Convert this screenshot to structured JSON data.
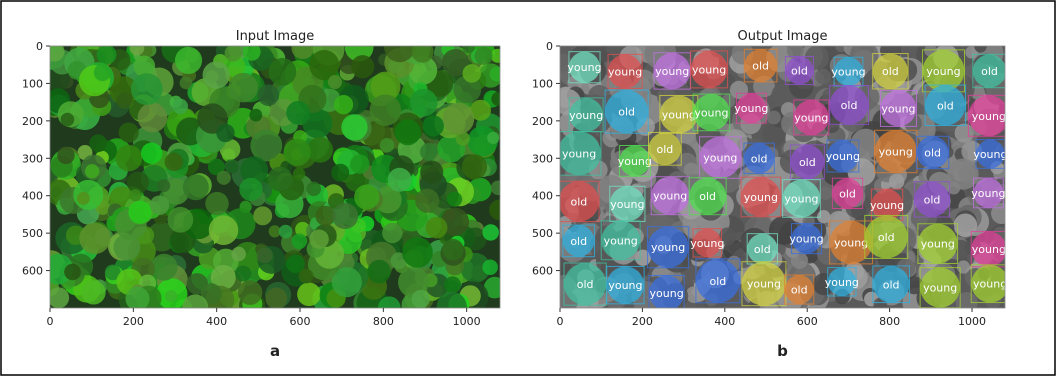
{
  "figure": {
    "panels": [
      {
        "title": "Input Image",
        "label": "a",
        "xlim": [
          0,
          1080
        ],
        "ylim": [
          700,
          0
        ],
        "xticks": [
          0,
          200,
          400,
          600,
          800,
          1000
        ],
        "yticks": [
          0,
          100,
          200,
          300,
          400,
          500,
          600
        ]
      },
      {
        "title": "Output Image",
        "label": "b",
        "xlim": [
          0,
          1080
        ],
        "ylim": [
          700,
          0
        ],
        "xticks": [
          0,
          200,
          400,
          600,
          800,
          1000
        ],
        "yticks": [
          0,
          100,
          200,
          300,
          400,
          500,
          600
        ],
        "detections": [
          "young",
          "young",
          "young",
          "young",
          "old",
          "old",
          "young",
          "old",
          "young",
          "old",
          "young",
          "old",
          "young",
          "young",
          "young",
          "young",
          "old",
          "young",
          "old",
          "young",
          "young",
          "young",
          "old",
          "young",
          "old",
          "old",
          "young",
          "young",
          "old",
          "young",
          "old",
          "young",
          "young",
          "old",
          "young",
          "young",
          "old",
          "young",
          "old",
          "young",
          "old",
          "young",
          "young",
          "young",
          "old",
          "young",
          "young",
          "old",
          "young",
          "young",
          "old",
          "young",
          "young",
          "old",
          "young",
          "old",
          "young",
          "old",
          "young",
          "young"
        ]
      }
    ]
  }
}
